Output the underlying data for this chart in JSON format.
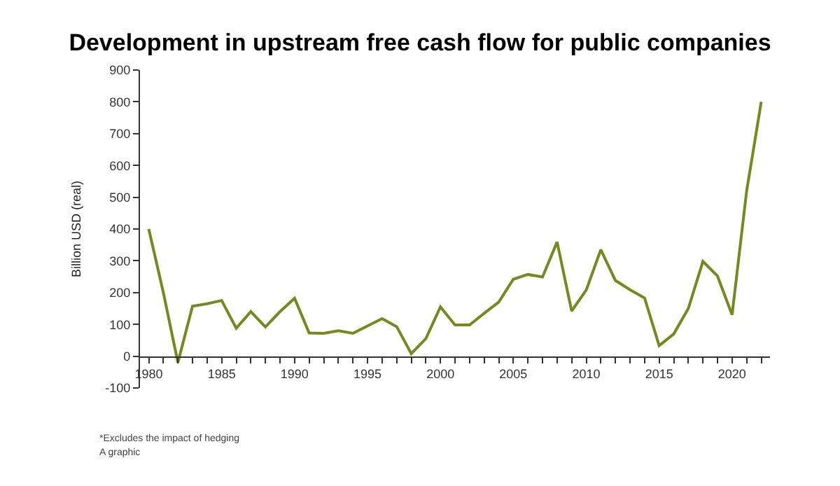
{
  "chart_data": {
    "type": "line",
    "title": "Development in upstream free cash flow for public companies",
    "ylabel": "Billion USD (real)",
    "x": [
      1980,
      1981,
      1982,
      1983,
      1984,
      1985,
      1986,
      1987,
      1988,
      1989,
      1990,
      1991,
      1992,
      1993,
      1994,
      1995,
      1996,
      1997,
      1998,
      1999,
      2000,
      2001,
      2002,
      2003,
      2004,
      2005,
      2006,
      2007,
      2008,
      2009,
      2010,
      2011,
      2012,
      2013,
      2014,
      2015,
      2016,
      2017,
      2018,
      2019,
      2020,
      2021,
      2022
    ],
    "series": [
      {
        "color": "#728a1e",
        "values": [
          400,
          200,
          -20,
          157,
          165,
          175,
          88,
          140,
          92,
          140,
          182,
          73,
          72,
          80,
          72,
          95,
          118,
          93,
          8,
          55,
          155,
          98,
          98,
          135,
          170,
          242,
          257,
          249,
          359,
          142,
          208,
          335,
          238,
          209,
          183,
          33,
          70,
          150,
          298,
          252,
          130,
          520,
          800
        ]
      }
    ],
    "xlim": [
      1979.4,
      2022.6
    ],
    "xticks": [
      1980,
      {
        "value": 1981,
        "label": null
      },
      {
        "value": 1982,
        "label": null
      },
      {
        "value": 1983,
        "label": null
      },
      {
        "value": 1984,
        "label": null
      },
      1985,
      {
        "value": 1986,
        "label": null
      },
      {
        "value": 1987,
        "label": null
      },
      {
        "value": 1988,
        "label": null
      },
      {
        "value": 1989,
        "label": null
      },
      1990,
      {
        "value": 1991,
        "label": null
      },
      {
        "value": 1992,
        "label": null
      },
      {
        "value": 1993,
        "label": null
      },
      {
        "value": 1994,
        "label": null
      },
      1995,
      {
        "value": 1996,
        "label": null
      },
      {
        "value": 1997,
        "label": null
      },
      {
        "value": 1998,
        "label": null
      },
      {
        "value": 1999,
        "label": null
      },
      2000,
      {
        "value": 2001,
        "label": null
      },
      {
        "value": 2002,
        "label": null
      },
      {
        "value": 2003,
        "label": null
      },
      {
        "value": 2004,
        "label": null
      },
      2005,
      {
        "value": 2006,
        "label": null
      },
      {
        "value": 2007,
        "label": null
      },
      {
        "value": 2008,
        "label": null
      },
      {
        "value": 2009,
        "label": null
      },
      2010,
      {
        "value": 2011,
        "label": null
      },
      {
        "value": 2012,
        "label": null
      },
      {
        "value": 2013,
        "label": null
      },
      {
        "value": 2014,
        "label": null
      },
      2015,
      {
        "value": 2016,
        "label": null
      },
      {
        "value": 2017,
        "label": null
      },
      {
        "value": 2018,
        "label": null
      },
      {
        "value": 2019,
        "label": null
      },
      2020,
      {
        "value": 2021,
        "label": null
      },
      {
        "value": 2022,
        "label": null
      }
    ],
    "ylim": [
      -100,
      900
    ],
    "yticks": [
      -100,
      0,
      100,
      200,
      300,
      400,
      500,
      600,
      700,
      800,
      900
    ],
    "marker": "none",
    "line_style": "solid",
    "annotations": [
      "*Excludes the impact of hedging",
      "A graphic"
    ]
  }
}
